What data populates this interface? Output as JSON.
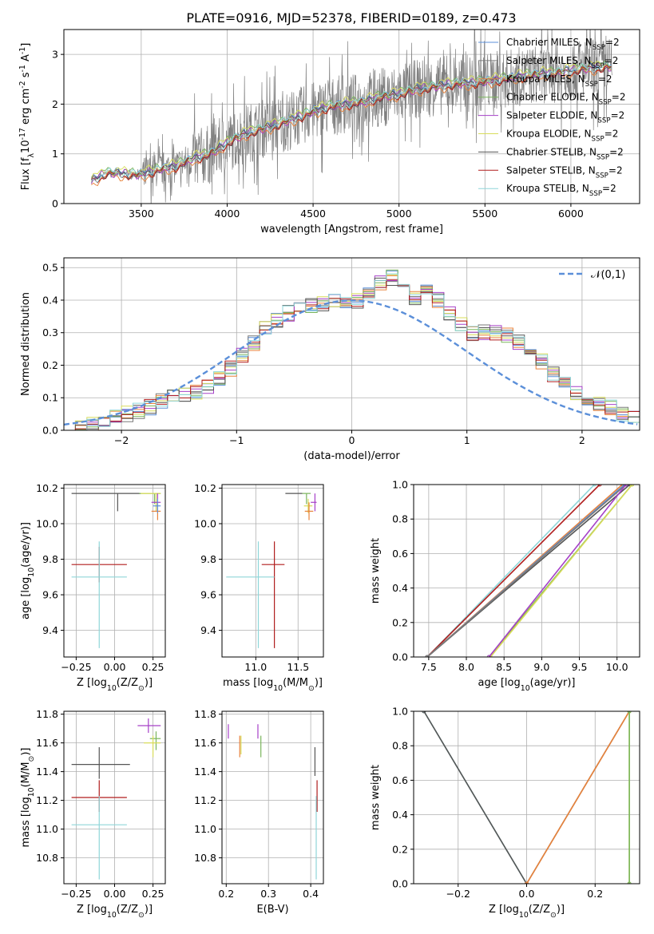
{
  "figure": {
    "title": "PLATE=0916, MJD=52378, FIBERID=0189, z=0.473"
  },
  "colors": {
    "Chabrier MILES": "#5b8fd9",
    "Salpeter MILES": "#7a7a7a",
    "Kroupa MILES": "#e8823a",
    "Chabrier ELODIE": "#7ab55c",
    "Salpeter ELODIE": "#a640c8",
    "Kroupa ELODIE": "#d8dc5a",
    "Chabrier STELIB": "#555555",
    "Salpeter STELIB": "#b01c1c",
    "Kroupa STELIB": "#8fd6d9",
    "normal": "#5b8fd9",
    "data": "#808080"
  },
  "chart_data": [
    {
      "id": "spectrum",
      "type": "line",
      "title": "PLATE=0916, MJD=52378, FIBERID=0189, z=0.473",
      "xlabel": "wavelength [Angstrom, rest frame]",
      "ylabel": "Flux [f$_\\lambda$10$^{-17}$ erg cm$^{-2}$ s$^{-1}$ A$^{-1}$]",
      "xlim": [
        3050,
        6400
      ],
      "ylim": [
        0,
        3.5
      ],
      "xticks": [
        3500,
        4000,
        4500,
        5000,
        5500,
        6000
      ],
      "yticks": [
        0,
        1,
        2,
        3
      ],
      "legend_position": "top-right",
      "data_anchor": {
        "x": [
          3210,
          3300,
          3400,
          3500,
          3600,
          3700,
          3800,
          3900,
          4000,
          4100,
          4200,
          4300,
          4400,
          4500,
          4600,
          4700,
          4800,
          4900,
          5000,
          5100,
          5200,
          5300,
          5400,
          5500,
          5600,
          5700,
          5800,
          5900,
          6000,
          6100,
          6200
        ],
        "y": [
          0.45,
          0.62,
          0.6,
          0.58,
          0.68,
          0.75,
          0.9,
          1.0,
          1.22,
          1.4,
          1.5,
          1.6,
          1.72,
          1.85,
          1.95,
          2.0,
          2.05,
          2.15,
          2.2,
          2.3,
          2.35,
          2.4,
          2.42,
          2.45,
          2.5,
          2.55,
          2.6,
          2.62,
          2.68,
          2.72,
          2.75
        ]
      },
      "series": [
        {
          "name": "Chabrier MILES, N$_{SSP}$=2",
          "offset": 0.02
        },
        {
          "name": "Salpeter MILES, N$_{SSP}$=2",
          "offset": -0.02
        },
        {
          "name": "Kroupa MILES, N$_{SSP}$=2",
          "offset": -0.06
        },
        {
          "name": "Chabrier ELODIE, N$_{SSP}$=2",
          "offset": 0.04
        },
        {
          "name": "Salpeter ELODIE, N$_{SSP}$=2",
          "offset": 0.0
        },
        {
          "name": "Kroupa ELODIE, N$_{SSP}$=2",
          "offset": 0.06
        },
        {
          "name": "Chabrier STELIB, N$_{SSP}$=2",
          "offset": -0.01
        },
        {
          "name": "Salpeter STELIB, N$_{SSP}$=2",
          "offset": -0.03
        },
        {
          "name": "Kroupa STELIB, N$_{SSP}$=2",
          "offset": 0.01
        }
      ]
    },
    {
      "id": "residuals",
      "type": "line",
      "xlabel": "(data-model)/error",
      "ylabel": "Normed distribution",
      "xlim": [
        -2.5,
        2.5
      ],
      "ylim": [
        0,
        0.53
      ],
      "xticks": [
        -2,
        -1,
        0,
        1,
        2
      ],
      "yticks": [
        0.0,
        0.1,
        0.2,
        0.3,
        0.4,
        0.5
      ],
      "grid": true,
      "legend": "$\\mathcal{N}(0,1)$",
      "legend_position": "top-right",
      "bin_edges": [
        -2.5,
        -2.4,
        -2.3,
        -2.2,
        -2.1,
        -2.0,
        -1.9,
        -1.8,
        -1.7,
        -1.6,
        -1.5,
        -1.4,
        -1.3,
        -1.2,
        -1.1,
        -1.0,
        -0.9,
        -0.8,
        -0.7,
        -0.6,
        -0.5,
        -0.4,
        -0.3,
        -0.2,
        -0.1,
        0.0,
        0.1,
        0.2,
        0.3,
        0.4,
        0.5,
        0.6,
        0.7,
        0.8,
        0.9,
        1.0,
        1.1,
        1.2,
        1.3,
        1.4,
        1.5,
        1.6,
        1.7,
        1.8,
        1.9,
        2.0,
        2.1,
        2.2,
        2.3,
        2.4,
        2.5
      ],
      "base_hist": [
        0.0,
        0.01,
        0.02,
        0.03,
        0.04,
        0.05,
        0.06,
        0.07,
        0.09,
        0.1,
        0.11,
        0.12,
        0.13,
        0.16,
        0.19,
        0.23,
        0.27,
        0.31,
        0.34,
        0.36,
        0.37,
        0.38,
        0.39,
        0.4,
        0.39,
        0.4,
        0.42,
        0.45,
        0.47,
        0.43,
        0.41,
        0.44,
        0.4,
        0.36,
        0.33,
        0.3,
        0.3,
        0.3,
        0.29,
        0.27,
        0.24,
        0.21,
        0.17,
        0.14,
        0.11,
        0.09,
        0.08,
        0.07,
        0.05,
        0.04
      ]
    },
    {
      "id": "age_vs_Z",
      "type": "scatter",
      "xlabel": "Z [log$_{10}$($Z/Z_\\odot$)]",
      "ylabel": "age  [log$_{10}$($age/yr$)]",
      "xlim": [
        -0.33,
        0.33
      ],
      "ylim": [
        9.25,
        10.22
      ],
      "xticks": [
        -0.25,
        0.0,
        0.25
      ],
      "yticks": [
        9.4,
        9.6,
        9.8,
        10.0,
        10.2
      ],
      "points": [
        {
          "series": "Chabrier STELIB",
          "x": 0.02,
          "xerr_lo": 0.3,
          "xerr_hi": 0.15,
          "y": 10.17,
          "yerr_lo": 0.1,
          "yerr_hi": 0.0
        },
        {
          "series": "Salpeter STELIB",
          "x": -0.1,
          "xerr_lo": 0.18,
          "xerr_hi": 0.18,
          "y": 9.77,
          "yerr_lo": 0.1,
          "yerr_hi": 0.1
        },
        {
          "series": "Kroupa STELIB",
          "x": -0.1,
          "xerr_lo": 0.18,
          "xerr_hi": 0.18,
          "y": 9.7,
          "yerr_lo": 0.4,
          "yerr_hi": 0.2
        },
        {
          "series": "Chabrier ELODIE",
          "x": 0.26,
          "xerr_lo": 0.1,
          "xerr_hi": 0.04,
          "y": 10.17,
          "yerr_lo": 0.06,
          "yerr_hi": 0.0
        },
        {
          "series": "Kroupa ELODIE",
          "x": 0.27,
          "xerr_lo": 0.1,
          "xerr_hi": 0.03,
          "y": 10.17,
          "yerr_lo": 0.1,
          "yerr_hi": 0.0
        },
        {
          "series": "Salpeter ELODIE",
          "x": 0.28,
          "xerr_lo": 0.04,
          "xerr_hi": 0.02,
          "y": 10.12,
          "yerr_lo": 0.05,
          "yerr_hi": 0.05
        },
        {
          "series": "Kroupa MILES",
          "x": 0.28,
          "xerr_lo": 0.04,
          "xerr_hi": 0.02,
          "y": 10.07,
          "yerr_lo": 0.05,
          "yerr_hi": 0.05
        },
        {
          "series": "Chabrier MILES",
          "x": 0.28,
          "xerr_lo": 0.03,
          "xerr_hi": 0.02,
          "y": 10.1,
          "yerr_lo": 0.04,
          "yerr_hi": 0.04
        }
      ]
    },
    {
      "id": "age_vs_mass",
      "type": "scatter",
      "xlabel": "mass [log$_{10}$($M/M_\\odot$)]",
      "ylabel": "",
      "xlim": [
        10.6,
        11.8
      ],
      "ylim": [
        9.25,
        10.22
      ],
      "xticks": [
        11.0,
        11.5
      ],
      "yticks": [
        9.4,
        9.6,
        9.8,
        10.0,
        10.2
      ],
      "points": [
        {
          "series": "Chabrier STELIB",
          "x": 11.45,
          "xerr_lo": 0.1,
          "xerr_hi": 0.1,
          "y": 10.17,
          "yerr_lo": 0.0,
          "yerr_hi": 0.0
        },
        {
          "series": "Salpeter STELIB",
          "x": 11.22,
          "xerr_lo": 0.15,
          "xerr_hi": 0.12,
          "y": 9.77,
          "yerr_lo": 0.47,
          "yerr_hi": 0.13
        },
        {
          "series": "Kroupa STELIB",
          "x": 11.03,
          "xerr_lo": 0.38,
          "xerr_hi": 0.19,
          "y": 9.7,
          "yerr_lo": 0.4,
          "yerr_hi": 0.2
        },
        {
          "series": "Chabrier ELODIE",
          "x": 11.6,
          "xerr_lo": 0.05,
          "xerr_hi": 0.05,
          "y": 10.17,
          "yerr_lo": 0.06,
          "yerr_hi": 0.0
        },
        {
          "series": "Salpeter ELODIE",
          "x": 11.7,
          "xerr_lo": 0.05,
          "xerr_hi": 0.02,
          "y": 10.12,
          "yerr_lo": 0.05,
          "yerr_hi": 0.05
        },
        {
          "series": "Kroupa ELODIE",
          "x": 11.62,
          "xerr_lo": 0.05,
          "xerr_hi": 0.05,
          "y": 10.1,
          "yerr_lo": 0.04,
          "yerr_hi": 0.04
        },
        {
          "series": "Kroupa MILES",
          "x": 11.63,
          "xerr_lo": 0.05,
          "xerr_hi": 0.05,
          "y": 10.07,
          "yerr_lo": 0.05,
          "yerr_hi": 0.05
        }
      ]
    },
    {
      "id": "cdf_age",
      "type": "line",
      "xlabel": "age  [log$_{10}$($age/yr$)]",
      "ylabel": "mass weight",
      "xlim": [
        7.3,
        10.3
      ],
      "ylim": [
        0,
        1
      ],
      "xticks": [
        7.5,
        8.0,
        8.5,
        9.0,
        9.5,
        10.0
      ],
      "yticks": [
        0.0,
        0.2,
        0.4,
        0.6,
        0.8,
        1.0
      ],
      "lines": [
        {
          "series": "Kroupa STELIB",
          "x": [
            7.48,
            9.7
          ],
          "y": [
            0,
            1
          ]
        },
        {
          "series": "Salpeter STELIB",
          "x": [
            7.48,
            9.77
          ],
          "y": [
            0,
            1
          ]
        },
        {
          "series": "Kroupa MILES",
          "x": [
            7.48,
            10.07
          ],
          "y": [
            0,
            1
          ]
        },
        {
          "series": "Chabrier MILES",
          "x": [
            7.48,
            10.1
          ],
          "y": [
            0,
            1
          ]
        },
        {
          "series": "Chabrier STELIB",
          "x": [
            7.48,
            10.17
          ],
          "y": [
            0,
            1
          ]
        },
        {
          "series": "Salpeter MILES",
          "x": [
            7.48,
            10.12
          ],
          "y": [
            0,
            1
          ]
        },
        {
          "series": "Chabrier ELODIE",
          "x": [
            8.3,
            10.2
          ],
          "y": [
            0,
            1
          ]
        },
        {
          "series": "Kroupa ELODIE",
          "x": [
            8.32,
            10.2
          ],
          "y": [
            0,
            1
          ]
        },
        {
          "series": "Salpeter ELODIE",
          "x": [
            8.3,
            10.12
          ],
          "y": [
            0,
            1
          ]
        }
      ]
    },
    {
      "id": "mass_vs_Z",
      "type": "scatter",
      "xlabel": "Z [log$_{10}$($Z/Z_\\odot$)]",
      "ylabel": "mass [log$_{10}$($M/M_\\odot$)]",
      "xlim": [
        -0.33,
        0.33
      ],
      "ylim": [
        10.62,
        11.82
      ],
      "xticks": [
        -0.25,
        0.0,
        0.25
      ],
      "yticks": [
        10.8,
        11.0,
        11.2,
        11.4,
        11.6,
        11.8
      ],
      "points": [
        {
          "series": "Chabrier STELIB",
          "x": -0.1,
          "xerr_lo": 0.18,
          "xerr_hi": 0.2,
          "y": 11.45,
          "yerr_lo": 0.1,
          "yerr_hi": 0.12
        },
        {
          "series": "Salpeter STELIB",
          "x": -0.1,
          "xerr_lo": 0.18,
          "xerr_hi": 0.18,
          "y": 11.22,
          "yerr_lo": 0.1,
          "yerr_hi": 0.12
        },
        {
          "series": "Kroupa STELIB",
          "x": -0.1,
          "xerr_lo": 0.18,
          "xerr_hi": 0.18,
          "y": 11.03,
          "yerr_lo": 0.38,
          "yerr_hi": 0.2
        },
        {
          "series": "Salpeter ELODIE",
          "x": 0.22,
          "xerr_lo": 0.07,
          "xerr_hi": 0.08,
          "y": 11.72,
          "yerr_lo": 0.05,
          "yerr_hi": 0.05
        },
        {
          "series": "Chabrier ELODIE",
          "x": 0.27,
          "xerr_lo": 0.04,
          "xerr_hi": 0.03,
          "y": 11.63,
          "yerr_lo": 0.08,
          "yerr_hi": 0.05
        },
        {
          "series": "Kroupa ELODIE",
          "x": 0.25,
          "xerr_lo": 0.06,
          "xerr_hi": 0.05,
          "y": 11.6,
          "yerr_lo": 0.1,
          "yerr_hi": 0.05
        }
      ]
    },
    {
      "id": "mass_vs_EBV",
      "type": "scatter",
      "xlabel": "E(B-V)",
      "ylabel": "",
      "xlim": [
        0.19,
        0.43
      ],
      "ylim": [
        10.62,
        11.82
      ],
      "xticks": [
        0.2,
        0.3,
        0.4
      ],
      "yticks": [
        10.8,
        11.0,
        11.2,
        11.4,
        11.6,
        11.8
      ],
      "points": [
        {
          "series": "Salpeter ELODIE",
          "x": 0.205,
          "y": 11.68,
          "yerr_lo": 0.05,
          "yerr_hi": 0.05
        },
        {
          "series": "Kroupa MILES",
          "x": 0.232,
          "y": 11.6,
          "yerr_lo": 0.1,
          "yerr_hi": 0.05
        },
        {
          "series": "Kroupa ELODIE",
          "x": 0.235,
          "y": 11.6,
          "yerr_lo": 0.08,
          "yerr_hi": 0.05
        },
        {
          "series": "Salpeter ELODIE",
          "x": 0.275,
          "y": 11.68,
          "yerr_lo": 0.05,
          "yerr_hi": 0.05
        },
        {
          "series": "Chabrier ELODIE",
          "x": 0.282,
          "y": 11.6,
          "yerr_lo": 0.1,
          "yerr_hi": 0.05
        },
        {
          "series": "Chabrier STELIB",
          "x": 0.41,
          "y": 11.45,
          "yerr_lo": 0.08,
          "yerr_hi": 0.12
        },
        {
          "series": "Salpeter STELIB",
          "x": 0.415,
          "y": 11.22,
          "yerr_lo": 0.1,
          "yerr_hi": 0.12
        },
        {
          "series": "Kroupa STELIB",
          "x": 0.413,
          "y": 11.03,
          "yerr_lo": 0.38,
          "yerr_hi": 0.2
        }
      ]
    },
    {
      "id": "cdf_Z",
      "type": "line",
      "xlabel": "Z [log$_{10}$($Z/Z_\\odot$)]",
      "ylabel": "mass weight",
      "xlim": [
        -0.33,
        0.33
      ],
      "ylim": [
        0,
        1
      ],
      "xticks": [
        -0.2,
        0.0,
        0.2
      ],
      "yticks": [
        0.0,
        0.2,
        0.4,
        0.6,
        0.8,
        1.0
      ],
      "lines": [
        {
          "series": "Kroupa STELIB",
          "x": [
            -0.3,
            0.0
          ],
          "y": [
            1,
            0
          ]
        },
        {
          "series": "Chabrier STELIB",
          "x": [
            -0.3,
            0.0
          ],
          "y": [
            1,
            0
          ]
        },
        {
          "series": "Salpeter MILES",
          "x": [
            0.0,
            0.3
          ],
          "y": [
            0,
            1
          ]
        },
        {
          "series": "Kroupa MILES",
          "x": [
            0.0,
            0.3
          ],
          "y": [
            0,
            1
          ]
        },
        {
          "series": "Kroupa ELODIE",
          "x": [
            0.3,
            0.3
          ],
          "y": [
            0,
            1
          ]
        },
        {
          "series": "Chabrier ELODIE",
          "x": [
            0.3,
            0.3
          ],
          "y": [
            0,
            1
          ]
        }
      ]
    }
  ]
}
